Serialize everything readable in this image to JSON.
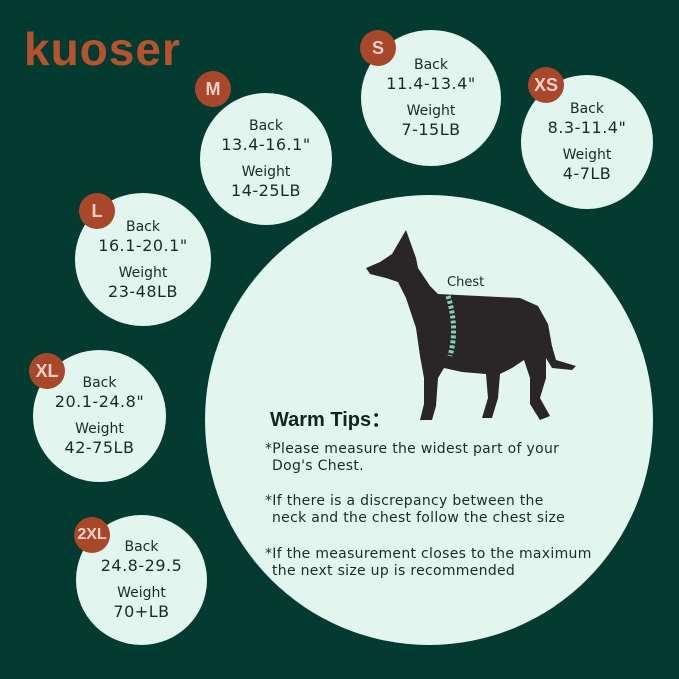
{
  "brand": {
    "logo": "kuoser",
    "color": "#b5532f"
  },
  "sizes": [
    {
      "size": "M",
      "back_label": "Back",
      "back": "13.4-16.1\"",
      "weight_label": "Weight",
      "weight": "14-25LB"
    },
    {
      "size": "S",
      "back_label": "Back",
      "back": "11.4-13.4\"",
      "weight_label": "Weight",
      "weight": "7-15LB"
    },
    {
      "size": "XS",
      "back_label": "Back",
      "back": "8.3-11.4\"",
      "weight_label": "Weight",
      "weight": "4-7LB"
    },
    {
      "size": "L",
      "back_label": "Back",
      "back": "16.1-20.1\"",
      "weight_label": "Weight",
      "weight": "23-48LB"
    },
    {
      "size": "XL",
      "back_label": "Back",
      "back": "20.1-24.8\"",
      "weight_label": "Weight",
      "weight": "42-75LB"
    },
    {
      "size": "2XL",
      "back_label": "Back",
      "back": "24.8-29.5",
      "weight_label": "Weight",
      "weight": "70+LB"
    }
  ],
  "diagram": {
    "chest_label": "Chest"
  },
  "tips": {
    "title": "Warm Tips：",
    "items": [
      {
        "line1": "*Please measure the widest part of your",
        "line2": "Dog's Chest."
      },
      {
        "line1": "*If there is a discrepancy between the",
        "line2": "neck and the chest follow the chest size"
      },
      {
        "line1": "*If the measurement closes to the maximum",
        "line2": "the next size up is recommended"
      }
    ]
  },
  "colors": {
    "background": "#033b30",
    "circle": "#e2f6ef",
    "badge": "#a9472a",
    "chest_band": "#7fd1b3"
  }
}
